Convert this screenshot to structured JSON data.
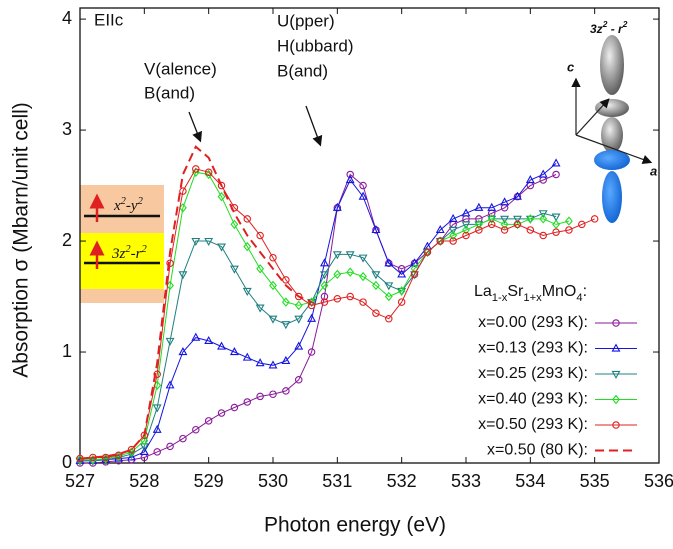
{
  "chart_data": {
    "type": "line",
    "xlabel": "Photon energy (eV)",
    "ylabel": "Absorption σ (Mbarn/unit cell)",
    "xlim": [
      527,
      536
    ],
    "ylim": [
      0,
      4.1
    ],
    "xticks": [
      527,
      528,
      529,
      530,
      531,
      532,
      533,
      534,
      535,
      536
    ],
    "yticks": [
      0,
      1,
      2,
      3,
      4
    ],
    "x": [
      527,
      527.2,
      527.4,
      527.6,
      527.8,
      528,
      528.2,
      528.4,
      528.6,
      528.8,
      529,
      529.2,
      529.4,
      529.6,
      529.8,
      530,
      530.2,
      530.4,
      530.6,
      530.8,
      531,
      531.2,
      531.4,
      531.6,
      531.8,
      532,
      532.2,
      532.4,
      532.6,
      532.8,
      533,
      533.2,
      533.4,
      533.6,
      533.8,
      534,
      534.2,
      534.4,
      534.6,
      534.8,
      535
    ],
    "legend_title": [
      "La",
      "1-x",
      "Sr",
      "1+x",
      "MnO",
      "4",
      ":"
    ],
    "series": [
      {
        "name": "x=0.00 (293 K):",
        "color": "#8b1a9b",
        "marker": "circle",
        "dash": "none",
        "values": [
          0.0,
          0.0,
          0.01,
          0.02,
          0.03,
          0.05,
          0.1,
          0.15,
          0.22,
          0.3,
          0.38,
          0.45,
          0.5,
          0.55,
          0.6,
          0.62,
          0.65,
          0.75,
          1.0,
          1.5,
          2.3,
          2.6,
          2.5,
          2.1,
          1.8,
          1.75,
          1.8,
          1.9,
          2.0,
          2.15,
          2.2,
          2.2,
          2.25,
          2.3,
          2.4,
          2.5,
          2.55,
          2.6,
          null,
          null,
          null
        ]
      },
      {
        "name": "x=0.13 (293 K):",
        "color": "#1414e0",
        "marker": "triangle-up",
        "dash": "none",
        "values": [
          0.02,
          0.02,
          0.03,
          0.04,
          0.05,
          0.1,
          0.3,
          0.7,
          1.0,
          1.13,
          1.1,
          1.05,
          1.0,
          0.95,
          0.9,
          0.88,
          0.92,
          1.05,
          1.3,
          1.8,
          2.3,
          2.55,
          2.4,
          2.1,
          1.8,
          1.7,
          1.8,
          1.95,
          2.1,
          2.2,
          2.25,
          2.3,
          2.3,
          2.35,
          2.4,
          2.55,
          2.6,
          2.7,
          null,
          null,
          null
        ]
      },
      {
        "name": "x=0.25 (293 K):",
        "color": "#208080",
        "marker": "triangle-down",
        "dash": "none",
        "values": [
          0.02,
          0.02,
          0.03,
          0.05,
          0.08,
          0.15,
          0.5,
          1.1,
          1.7,
          2.0,
          2.0,
          1.95,
          1.75,
          1.55,
          1.4,
          1.3,
          1.25,
          1.3,
          1.45,
          1.7,
          1.88,
          1.88,
          1.85,
          1.7,
          1.6,
          1.55,
          1.7,
          1.9,
          2.0,
          2.1,
          2.15,
          2.15,
          2.2,
          2.2,
          2.2,
          2.2,
          2.25,
          2.22,
          null,
          null,
          null
        ]
      },
      {
        "name": "x=0.40 (293 K):",
        "color": "#22dd22",
        "marker": "diamond",
        "dash": "none",
        "values": [
          0.03,
          0.03,
          0.04,
          0.06,
          0.1,
          0.2,
          0.7,
          1.6,
          2.3,
          2.62,
          2.6,
          2.4,
          2.15,
          1.95,
          1.75,
          1.6,
          1.45,
          1.42,
          1.45,
          1.6,
          1.7,
          1.72,
          1.68,
          1.6,
          1.5,
          1.55,
          1.75,
          1.9,
          2.0,
          2.05,
          2.1,
          2.15,
          2.2,
          2.15,
          2.15,
          2.2,
          2.2,
          2.15,
          2.18,
          null,
          null
        ]
      },
      {
        "name": "x=0.50 (293 K):",
        "color": "#e02020",
        "marker": "circle",
        "dash": "none",
        "values": [
          0.04,
          0.05,
          0.05,
          0.07,
          0.12,
          0.25,
          0.8,
          1.8,
          2.45,
          2.65,
          2.62,
          2.5,
          2.3,
          2.2,
          2.05,
          1.85,
          1.65,
          1.5,
          1.42,
          1.45,
          1.48,
          1.5,
          1.45,
          1.35,
          1.3,
          1.45,
          1.7,
          1.9,
          2.0,
          2.0,
          2.05,
          2.1,
          2.15,
          2.1,
          2.15,
          2.1,
          2.05,
          2.08,
          2.1,
          2.15,
          2.2
        ]
      },
      {
        "name": "x=0.50  (80 K):",
        "color": "#e02020",
        "marker": "none",
        "dash": "9,5",
        "values": [
          0.04,
          0.05,
          0.06,
          0.08,
          0.12,
          0.25,
          0.9,
          1.9,
          2.6,
          2.85,
          2.75,
          2.5,
          2.25,
          2.05,
          1.9,
          1.75,
          1.6,
          1.5,
          1.45,
          null,
          null,
          null,
          null,
          null,
          null,
          null,
          null,
          null,
          null,
          null,
          null,
          null,
          null,
          null,
          null,
          null,
          null,
          null,
          null,
          null,
          null
        ]
      }
    ],
    "annotations": {
      "panel": "EIIc",
      "vb": [
        "V(alence)",
        "B(and)"
      ],
      "uhb": [
        "U(pper)",
        "H(ubbard)",
        "B(and)"
      ]
    },
    "levels": {
      "upper": [
        "x",
        "2",
        "-y",
        "2"
      ],
      "lower": [
        "3z",
        "2",
        "-r",
        "2"
      ]
    },
    "orbital": {
      "label": [
        "3z",
        "2",
        " - r",
        "2"
      ],
      "axis_c": "c",
      "axis_a": "a"
    }
  }
}
